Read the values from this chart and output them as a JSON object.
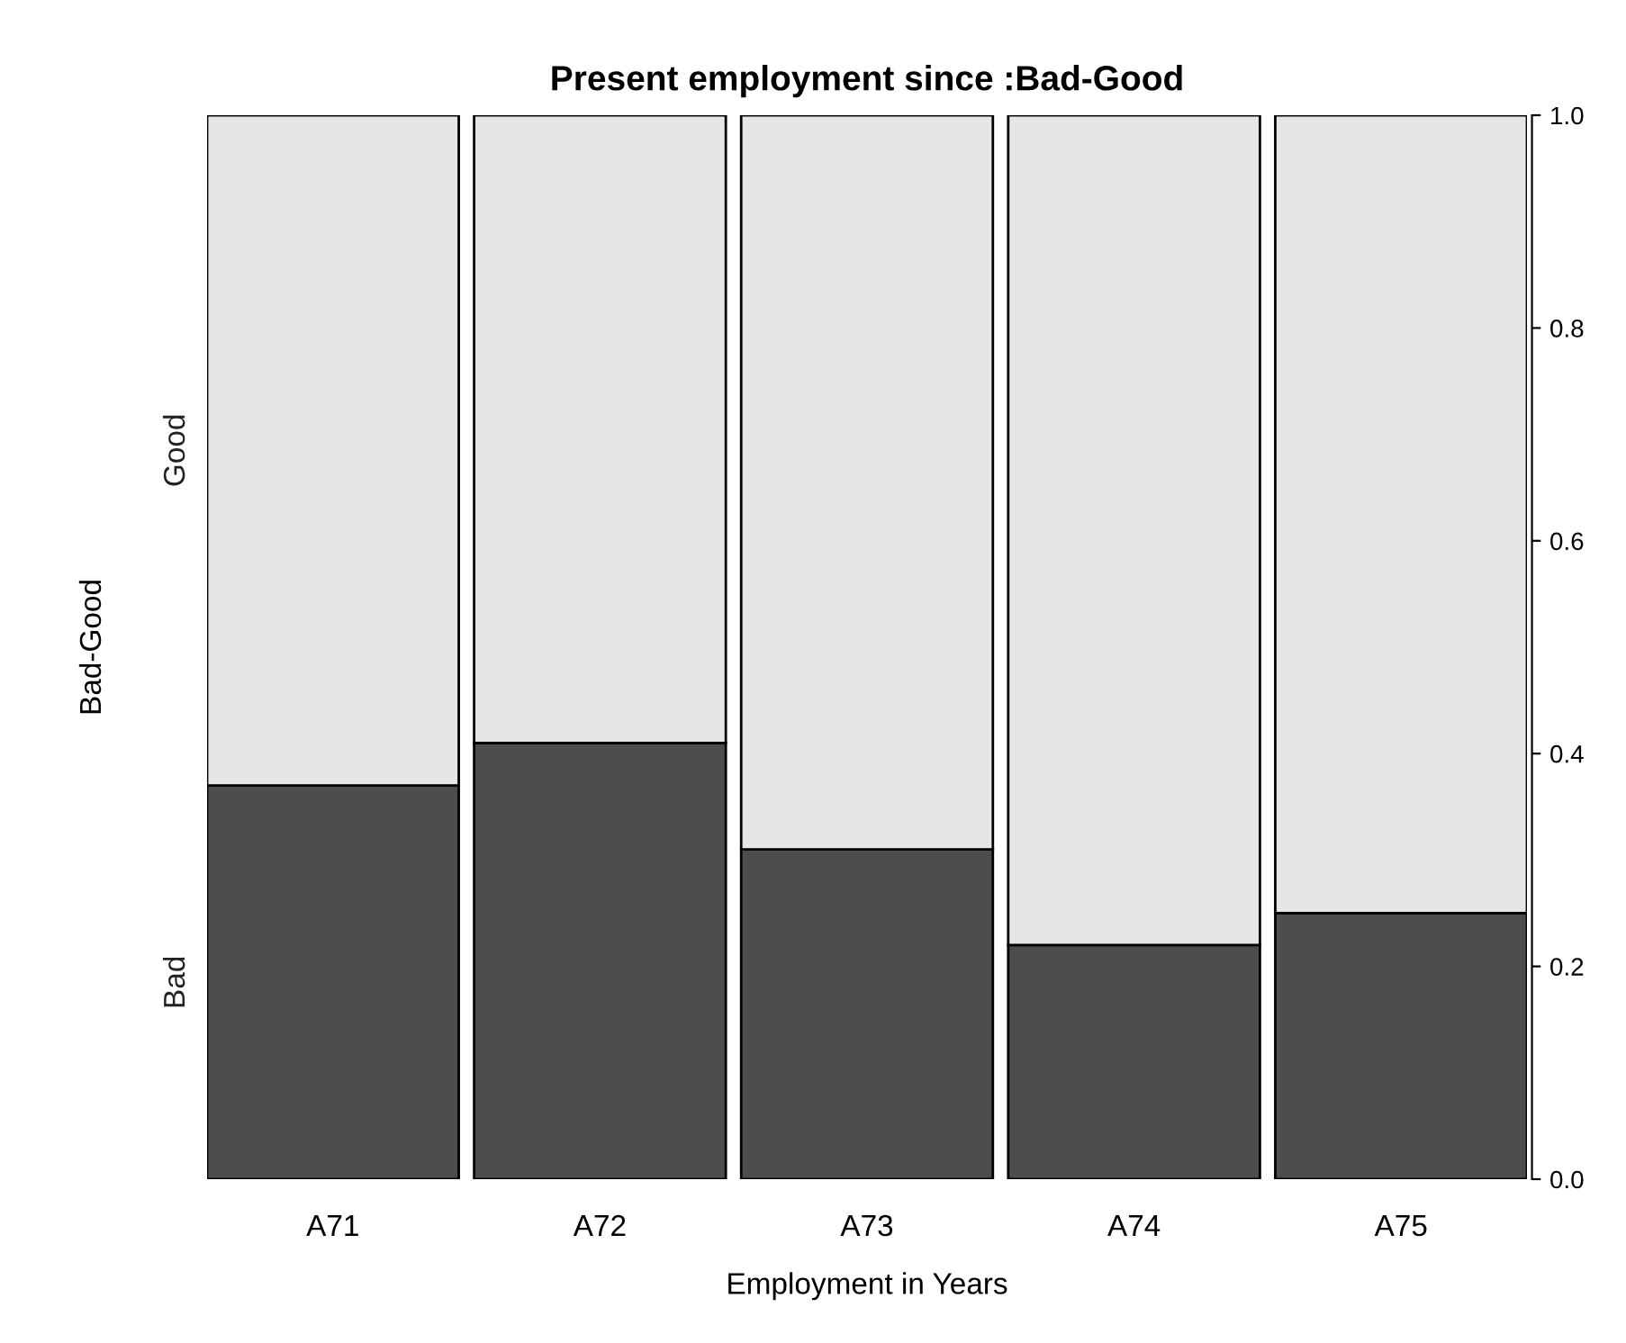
{
  "chart_data": {
    "type": "bar",
    "stacked": true,
    "title": "Present employment since :Bad-Good",
    "xlabel": "Employment in Years",
    "ylabel": "Bad-Good",
    "categories": [
      "A71",
      "A72",
      "A73",
      "A74",
      "A75"
    ],
    "series": [
      {
        "name": "Bad",
        "color": "#4d4d4d",
        "values": [
          0.37,
          0.41,
          0.31,
          0.22,
          0.25
        ]
      },
      {
        "name": "Good",
        "color": "#e6e6e6",
        "values": [
          0.63,
          0.59,
          0.69,
          0.78,
          0.75
        ]
      }
    ],
    "ylim": [
      0,
      1
    ],
    "yticks": [
      {
        "value": 0,
        "label": "0.0"
      },
      0.2,
      0.4,
      0.6,
      0.8,
      {
        "value": 1,
        "label": "1.0"
      }
    ],
    "grid": false,
    "legend": false
  }
}
